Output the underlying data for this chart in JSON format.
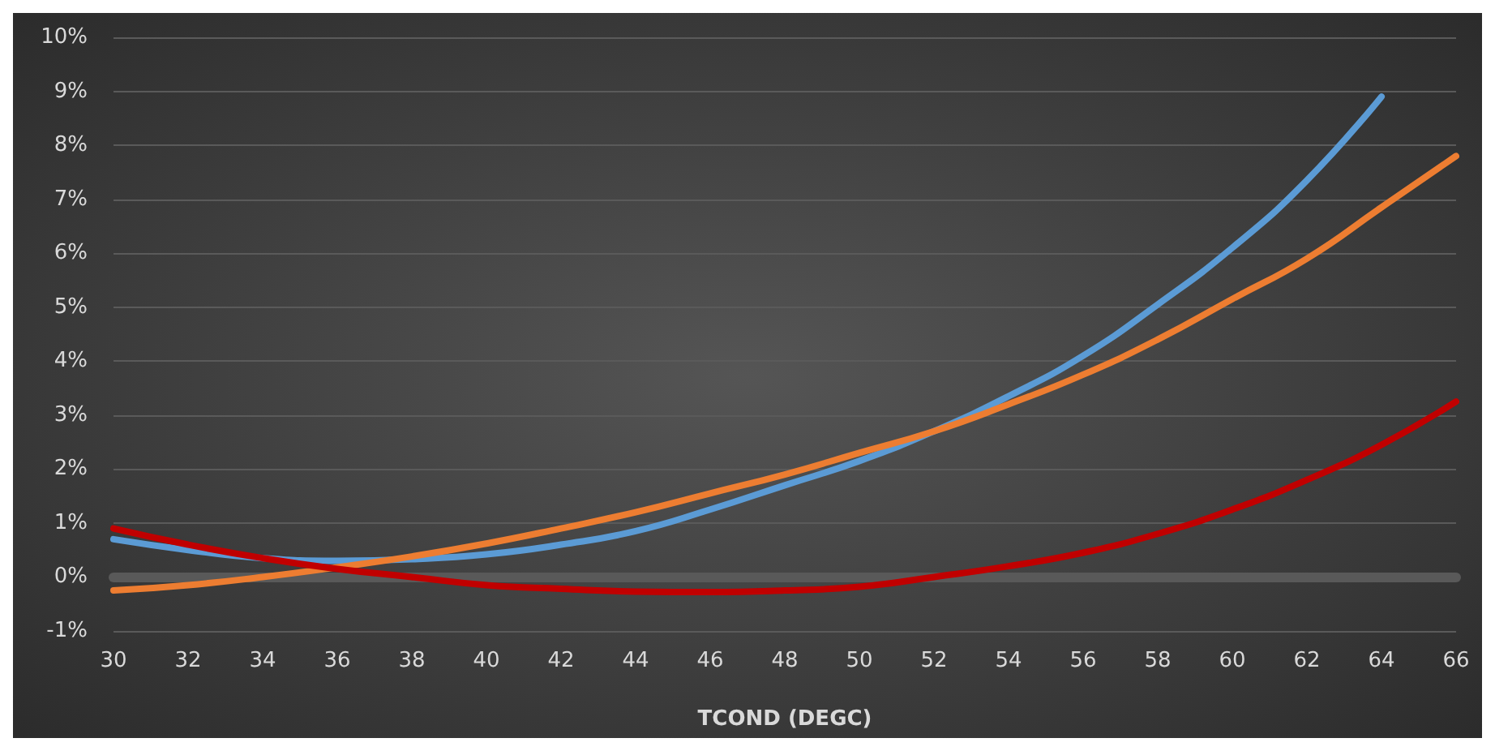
{
  "chart_data": {
    "type": "line",
    "xlabel": "TCOND (DEGC)",
    "categories": [
      "30",
      "32",
      "34",
      "36",
      "38",
      "40",
      "42",
      "44",
      "46",
      "48",
      "50",
      "52",
      "54",
      "56",
      "58",
      "60",
      "62",
      "64",
      "66"
    ],
    "series": [
      {
        "color": "#5b9bd5",
        "values": [
          0.7,
          0.5,
          0.35,
          0.3,
          0.33,
          0.42,
          0.6,
          0.85,
          1.25,
          1.7,
          2.15,
          2.7,
          3.35,
          4.1,
          5.05,
          6.1,
          7.35,
          8.9,
          null
        ]
      },
      {
        "color": "#ed7d31",
        "values": [
          -0.25,
          -0.15,
          0.0,
          0.18,
          0.38,
          0.62,
          0.9,
          1.2,
          1.55,
          1.9,
          2.3,
          2.7,
          3.2,
          3.75,
          4.4,
          5.15,
          5.9,
          6.85,
          7.8
        ]
      },
      {
        "color": "#c00000",
        "values": [
          0.9,
          0.6,
          0.35,
          0.15,
          0.0,
          -0.15,
          -0.22,
          -0.27,
          -0.28,
          -0.25,
          -0.18,
          0.0,
          0.2,
          0.45,
          0.8,
          1.25,
          1.8,
          2.45,
          3.25
        ]
      }
    ],
    "ylim": [
      -1,
      10
    ],
    "yticks": [
      {
        "value": -1,
        "label": "-1%"
      },
      {
        "value": 0,
        "label": "0%"
      },
      {
        "value": 1,
        "label": "1%"
      },
      {
        "value": 2,
        "label": "2%"
      },
      {
        "value": 3,
        "label": "3%"
      },
      {
        "value": 4,
        "label": "4%"
      },
      {
        "value": 5,
        "label": "5%"
      },
      {
        "value": 6,
        "label": "6%"
      },
      {
        "value": 7,
        "label": "7%"
      },
      {
        "value": 8,
        "label": "8%"
      },
      {
        "value": 9,
        "label": "9%"
      },
      {
        "value": 10,
        "label": "10%"
      }
    ],
    "grid": "y",
    "marker": "none",
    "line_style": "solid"
  }
}
